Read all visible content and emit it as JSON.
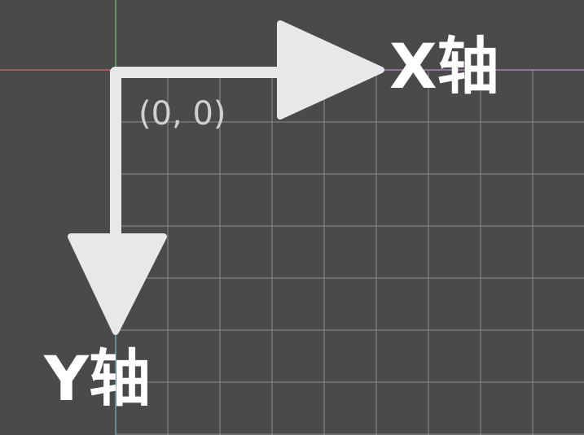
{
  "diagram": {
    "x_axis_label": "X轴",
    "y_axis_label": "Y轴",
    "origin_label": "(0, 0)"
  },
  "colors": {
    "background": "#4a4a4a",
    "grid_line": "#8c8c8c",
    "arrow": "#e8e8ea",
    "world_x_axis": "#d06a6a",
    "world_y_axis": "#6fcf6f",
    "world_x_axis_right": "#c08ad0",
    "world_y_axis_lower": "#6fb8b8"
  }
}
